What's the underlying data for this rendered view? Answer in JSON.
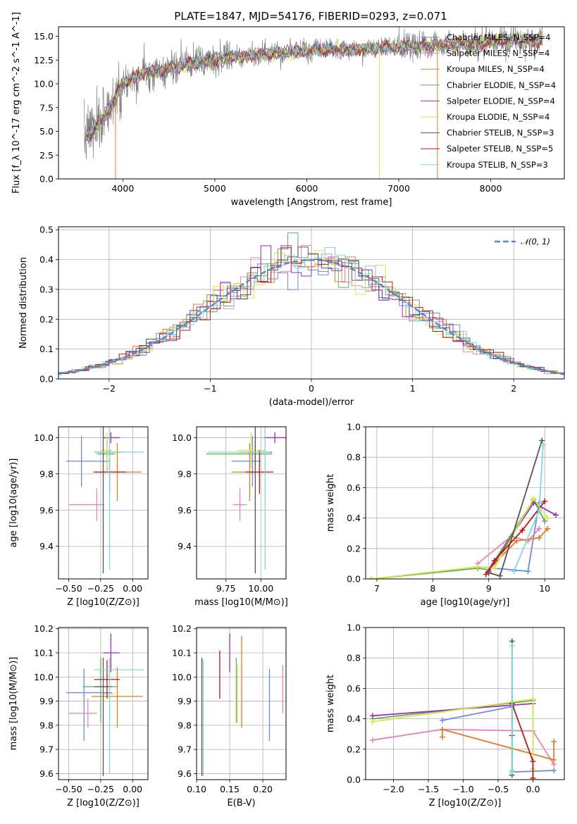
{
  "title": "PLATE=1847, MJD=54176, FIBERID=0293, z=0.071",
  "colors": {
    "Chabrier MILES": "#6a8be0",
    "Salpeter MILES": "#e683b8",
    "Kroupa MILES": "#e07b25",
    "Chabrier ELODIE": "#6aa85a",
    "Salpeter ELODIE": "#9b2fb5",
    "Kroupa ELODIE": "#d7e84a",
    "Chabrier STELIB": "#555555",
    "Salpeter STELIB": "#b01c1c",
    "Kroupa STELIB": "#7fd6e0",
    "data": "#7f7f7f",
    "gauss": "#5588cc",
    "grid": "#b0b0b0"
  },
  "chart_data": [
    {
      "id": "spectrum",
      "type": "line",
      "xlabel": "wavelength [Angstrom, rest frame]",
      "ylabel": "Flux [f_λ 10^-17 erg cm^-2 s^-1 A^-1]",
      "xlim": [
        3300,
        8800
      ],
      "ylim": [
        0,
        16
      ],
      "xticks": [
        "4000",
        "5000",
        "6000",
        "7000",
        "8000"
      ],
      "yticks": [
        "0.0",
        "2.5",
        "5.0",
        "7.5",
        "10.0",
        "12.5",
        "15.0"
      ],
      "grid": false,
      "legend": "top-right",
      "series": [
        {
          "name": "Chabrier MILES, N_SSP=4"
        },
        {
          "name": "Salpeter MILES, N_SSP=4"
        },
        {
          "name": "Kroupa MILES, N_SSP=4"
        },
        {
          "name": "Chabrier ELODIE, N_SSP=4"
        },
        {
          "name": "Salpeter ELODIE, N_SSP=4"
        },
        {
          "name": "Kroupa ELODIE, N_SSP=4"
        },
        {
          "name": "Chabrier STELIB, N_SSP=3"
        },
        {
          "name": "Salpeter STELIB, N_SSP=5"
        },
        {
          "name": "Kroupa STELIB, N_SSP=3"
        }
      ],
      "model_continuum": {
        "x": [
          3600,
          3750,
          3900,
          4000,
          4100,
          4250,
          4400,
          4600,
          4800,
          5000,
          5300,
          5600,
          6000,
          6500,
          7000,
          7500,
          8000,
          8500
        ],
        "y": [
          4.5,
          5.8,
          8.3,
          10.0,
          10.6,
          11.3,
          11.3,
          11.8,
          12.3,
          12.6,
          12.9,
          13.2,
          13.5,
          13.6,
          13.9,
          14.1,
          14.4,
          14.6
        ]
      }
    },
    {
      "id": "residuals",
      "type": "line",
      "xlabel": "(data-model)/error",
      "ylabel": "Normed distribution",
      "xlim": [
        -2.5,
        2.5
      ],
      "ylim": [
        0,
        0.51
      ],
      "xticks": [
        "−2",
        "−1",
        "0",
        "1",
        "2"
      ],
      "yticks": [
        "0.0",
        "0.1",
        "0.2",
        "0.3",
        "0.4",
        "0.5"
      ],
      "grid": true,
      "legend": "top-right",
      "gaussian_label": "𝒩(0, 1)",
      "gaussian": {
        "mean": 0,
        "sigma": 1
      }
    },
    {
      "id": "age-vs-Z",
      "type": "scatter",
      "xlabel": "Z [log10(Z/Z⊙)]",
      "ylabel": "age [log10(age/yr)]",
      "xlim": [
        -0.58,
        0.12
      ],
      "ylim": [
        9.22,
        10.06
      ],
      "xticks": [
        "−0.50",
        "−0.25",
        "0.00"
      ],
      "yticks": [
        "9.4",
        "9.6",
        "9.8",
        "10.0"
      ],
      "grid": true,
      "points": [
        {
          "model": "Chabrier MILES",
          "x": -0.4,
          "xerr": [
            0.12,
            0.22
          ],
          "y": 9.87,
          "yerr": [
            0.14,
            0.14
          ]
        },
        {
          "model": "Salpeter MILES",
          "x": -0.28,
          "xerr": [
            0.22,
            0.06
          ],
          "y": 9.63,
          "yerr": [
            0.09,
            0.09
          ]
        },
        {
          "model": "Kroupa MILES",
          "x": -0.12,
          "xerr": [
            0.19,
            0.19
          ],
          "y": 9.81,
          "yerr": [
            0.16,
            0.16
          ]
        },
        {
          "model": "Chabrier ELODIE",
          "x": -0.2,
          "xerr": [
            0.08,
            0.06
          ],
          "y": 9.91,
          "yerr": [
            0.09,
            0.09
          ]
        },
        {
          "model": "Salpeter ELODIE",
          "x": -0.17,
          "xerr": [
            0.06,
            0.07
          ],
          "y": 10.0,
          "yerr": [
            0.03,
            0.03
          ]
        },
        {
          "model": "Kroupa ELODIE",
          "x": -0.2,
          "xerr": [
            0.05,
            0.04
          ],
          "y": 9.93,
          "yerr": [
            0.1,
            0.1
          ]
        },
        {
          "model": "Chabrier STELIB",
          "x": -0.23,
          "xerr": [
            0.07,
            0.14
          ],
          "y": 9.92,
          "yerr": [
            0.67,
            0.67
          ]
        },
        {
          "model": "Salpeter STELIB",
          "x": -0.18,
          "xerr": [
            0.12,
            0.13
          ],
          "y": 9.81,
          "yerr": [
            0.12,
            0.12
          ]
        },
        {
          "model": "Kroupa STELIB",
          "x": -0.18,
          "xerr": [
            0.12,
            0.27
          ],
          "y": 9.92,
          "yerr": [
            0.65,
            0.65
          ]
        }
      ]
    },
    {
      "id": "age-vs-mass",
      "type": "scatter",
      "xlabel": "mass [log10(M/M⊙)]",
      "ylabel": "",
      "xlim": [
        9.54,
        10.18
      ],
      "ylim": [
        9.22,
        10.06
      ],
      "xticks": [
        "9.75",
        "10.00"
      ],
      "yticks": [
        "9.4",
        "9.6",
        "9.8",
        "10.0"
      ],
      "grid": true,
      "points": [
        {
          "model": "Chabrier MILES",
          "x": 9.94,
          "xerr": [
            0.15,
            0.06
          ],
          "y": 9.87,
          "yerr": [
            0.14,
            0.14
          ]
        },
        {
          "model": "Salpeter MILES",
          "x": 9.85,
          "xerr": [
            0.05,
            0.05
          ],
          "y": 9.63,
          "yerr": [
            0.09,
            0.09
          ]
        },
        {
          "model": "Kroupa MILES",
          "x": 9.92,
          "xerr": [
            0.13,
            0.12
          ],
          "y": 9.81,
          "yerr": [
            0.16,
            0.16
          ]
        },
        {
          "model": "Chabrier ELODIE",
          "x": 9.96,
          "xerr": [
            0.35,
            0.12
          ],
          "y": 9.91,
          "yerr": [
            0.09,
            0.09
          ]
        },
        {
          "model": "Salpeter ELODIE",
          "x": 10.1,
          "xerr": [
            0.08,
            0.08
          ],
          "y": 10.0,
          "yerr": [
            0.03,
            0.03
          ]
        },
        {
          "model": "Kroupa ELODIE",
          "x": 9.93,
          "xerr": [
            0.1,
            0.1
          ],
          "y": 9.93,
          "yerr": [
            0.1,
            0.1
          ]
        },
        {
          "model": "Chabrier STELIB",
          "x": 9.96,
          "xerr": [
            0.12,
            0.12
          ],
          "y": 9.92,
          "yerr": [
            0.67,
            0.67
          ]
        },
        {
          "model": "Salpeter STELIB",
          "x": 9.99,
          "xerr": [
            0.1,
            0.1
          ],
          "y": 9.81,
          "yerr": [
            0.12,
            0.12
          ]
        },
        {
          "model": "Kroupa STELIB",
          "x": 10.03,
          "xerr": [
            0.41,
            0.04
          ],
          "y": 9.92,
          "yerr": [
            0.65,
            0.65
          ]
        }
      ]
    },
    {
      "id": "weight-vs-age",
      "type": "line",
      "xlabel": "age [log10(age/yr)]",
      "ylabel": "mass weight",
      "xlim": [
        6.8,
        10.35
      ],
      "ylim": [
        0,
        1
      ],
      "xticks": [
        "7",
        "8",
        "9",
        "10"
      ],
      "yticks": [
        "0.0",
        "0.2",
        "0.4",
        "0.6",
        "0.8",
        "1.0"
      ],
      "grid": true,
      "series": [
        {
          "model": "Chabrier MILES",
          "x": [
            8.8,
            9.7,
            9.9
          ],
          "y": [
            0.08,
            0.05,
            0.5
          ]
        },
        {
          "model": "Salpeter MILES",
          "x": [
            8.8,
            9.4,
            9.7,
            9.9
          ],
          "y": [
            0.1,
            0.28,
            0.25,
            0.33
          ]
        },
        {
          "model": "Kroupa MILES",
          "x": [
            9.1,
            9.5,
            9.9,
            10.05
          ],
          "y": [
            0.1,
            0.25,
            0.27,
            0.33
          ]
        },
        {
          "model": "Chabrier ELODIE",
          "x": [
            6.9,
            8.8,
            9.0,
            9.8,
            10.0
          ],
          "y": [
            0.0,
            0.07,
            0.06,
            0.52,
            0.38
          ]
        },
        {
          "model": "Salpeter ELODIE",
          "x": [
            9.0,
            9.8,
            10.2
          ],
          "y": [
            0.05,
            0.5,
            0.42
          ]
        },
        {
          "model": "Kroupa ELODIE",
          "x": [
            6.9,
            8.8,
            9.1,
            9.8,
            10.05
          ],
          "y": [
            0.0,
            0.08,
            0.07,
            0.53,
            0.4
          ]
        },
        {
          "model": "Chabrier STELIB",
          "x": [
            9.0,
            9.2,
            9.95
          ],
          "y": [
            0.04,
            0.02,
            0.91
          ]
        },
        {
          "model": "Salpeter STELIB",
          "x": [
            8.95,
            9.1,
            9.6,
            10.0
          ],
          "y": [
            0.03,
            0.12,
            0.32,
            0.51
          ]
        },
        {
          "model": "Kroupa STELIB",
          "x": [
            9.45,
            9.9,
            9.97
          ],
          "y": [
            0.05,
            0.45,
            0.88
          ]
        }
      ]
    },
    {
      "id": "mass-vs-Z",
      "type": "scatter",
      "xlabel": "Z [log10(Z/Z⊙)]",
      "ylabel": "mass [log10(M/M⊙)]",
      "xlim": [
        -0.58,
        0.12
      ],
      "ylim": [
        9.575,
        10.205
      ],
      "xticks": [
        "−0.50",
        "−0.25",
        "0.00"
      ],
      "yticks": [
        "9.6",
        "9.7",
        "9.8",
        "9.9",
        "10.0",
        "10.1",
        "10.2"
      ],
      "grid": true,
      "points": [
        {
          "model": "Chabrier MILES",
          "x": -0.38,
          "xerr": [
            0.14,
            0.22
          ],
          "y": 9.935,
          "yerr": [
            0.2,
            0.1
          ]
        },
        {
          "model": "Salpeter MILES",
          "x": -0.35,
          "xerr": [
            0.15,
            0.07
          ],
          "y": 9.85,
          "yerr": [
            0.06,
            0.06
          ]
        },
        {
          "model": "Kroupa MILES",
          "x": -0.12,
          "xerr": [
            0.2,
            0.2
          ],
          "y": 9.92,
          "yerr": [
            0.13,
            0.12
          ]
        },
        {
          "model": "Chabrier ELODIE",
          "x": -0.25,
          "xerr": [
            0.14,
            0.13
          ],
          "y": 9.96,
          "yerr": [
            0.15,
            0.12
          ]
        },
        {
          "model": "Salpeter ELODIE",
          "x": -0.17,
          "xerr": [
            0.06,
            0.07
          ],
          "y": 10.1,
          "yerr": [
            0.08,
            0.08
          ]
        },
        {
          "model": "Kroupa ELODIE",
          "x": -0.18,
          "xerr": [
            0.05,
            0.04
          ],
          "y": 9.93,
          "yerr": [
            0.12,
            0.12
          ]
        },
        {
          "model": "Chabrier STELIB",
          "x": -0.23,
          "xerr": [
            0.07,
            0.07
          ],
          "y": 9.96,
          "yerr": [
            0.37,
            0.12
          ]
        },
        {
          "model": "Salpeter STELIB",
          "x": -0.2,
          "xerr": [
            0.1,
            0.1
          ],
          "y": 9.99,
          "yerr": [
            0.08,
            0.08
          ]
        },
        {
          "model": "Kroupa STELIB",
          "x": -0.18,
          "xerr": [
            0.12,
            0.27
          ],
          "y": 10.03,
          "yerr": [
            0.43,
            0.05
          ]
        }
      ]
    },
    {
      "id": "mass-vs-EBV",
      "type": "scatter",
      "xlabel": "E(B-V)",
      "ylabel": "",
      "xlim": [
        0.1,
        0.235
      ],
      "ylim": [
        9.575,
        10.205
      ],
      "xticks": [
        "0.10",
        "0.15",
        "0.20"
      ],
      "yticks": [
        "9.6",
        "9.7",
        "9.8",
        "9.9",
        "10.0",
        "10.1",
        "10.2"
      ],
      "grid": true,
      "points": [
        {
          "model": "Chabrier MILES",
          "x": 0.21,
          "y": 9.935,
          "yerr": [
            0.2,
            0.1
          ]
        },
        {
          "model": "Salpeter MILES",
          "x": 0.23,
          "y": 9.95,
          "yerr": [
            0.1,
            0.1
          ]
        },
        {
          "model": "Kroupa MILES",
          "x": 0.168,
          "y": 9.98,
          "yerr": [
            0.19,
            0.19
          ]
        },
        {
          "model": "Chabrier ELODIE",
          "x": 0.16,
          "y": 9.95,
          "yerr": [
            0.14,
            0.13
          ]
        },
        {
          "model": "Salpeter ELODIE",
          "x": 0.15,
          "y": 10.1,
          "yerr": [
            0.08,
            0.08
          ]
        },
        {
          "model": "Kroupa ELODIE",
          "x": 0.162,
          "y": 9.93,
          "yerr": [
            0.12,
            0.12
          ]
        },
        {
          "model": "Chabrier STELIB",
          "x": 0.108,
          "y": 9.84,
          "yerr": [
            0.25,
            0.24
          ]
        },
        {
          "model": "Salpeter STELIB",
          "x": 0.135,
          "y": 10.01,
          "yerr": [
            0.1,
            0.1
          ]
        },
        {
          "model": "Kroupa STELIB",
          "x": 0.11,
          "y": 9.83,
          "yerr": [
            0.24,
            0.24
          ]
        }
      ]
    },
    {
      "id": "weight-vs-Z",
      "type": "line",
      "xlabel": "Z [log10(Z/Z⊙)]",
      "ylabel": "mass weight",
      "xlim": [
        -2.4,
        0.45
      ],
      "ylim": [
        0,
        1
      ],
      "xticks": [
        "−2.0",
        "−1.5",
        "−1.0",
        "−0.5",
        "0.0"
      ],
      "yticks": [
        "0.0",
        "0.2",
        "0.4",
        "0.6",
        "0.8",
        "1.0"
      ],
      "grid": true,
      "series": [
        {
          "model": "Chabrier MILES",
          "x": [
            -1.3,
            -0.3,
            -0.3,
            0.3
          ],
          "y": [
            0.39,
            0.48,
            0.05,
            0.06
          ]
        },
        {
          "model": "Salpeter MILES",
          "x": [
            -2.3,
            -1.3,
            0.0,
            0.3
          ],
          "y": [
            0.26,
            0.33,
            0.32,
            0.1
          ]
        },
        {
          "model": "Kroupa MILES",
          "x": [
            -1.3,
            -1.3,
            0.3,
            0.3
          ],
          "y": [
            0.28,
            0.33,
            0.13,
            0.25
          ]
        },
        {
          "model": "Chabrier ELODIE",
          "x": [
            -2.3,
            0.0,
            0.0
          ],
          "y": [
            0.4,
            0.52,
            0.07
          ]
        },
        {
          "model": "Salpeter ELODIE",
          "x": [
            -2.3,
            0.0
          ],
          "y": [
            0.42,
            0.5
          ]
        },
        {
          "model": "Kroupa ELODIE",
          "x": [
            -2.3,
            0.0,
            0.0
          ],
          "y": [
            0.38,
            0.53,
            0.07
          ]
        },
        {
          "model": "Chabrier STELIB",
          "x": [
            -0.3,
            -0.3,
            -0.3
          ],
          "y": [
            0.91,
            0.29,
            0.03
          ]
        },
        {
          "model": "Salpeter STELIB",
          "x": [
            -0.3,
            0.0,
            0.0
          ],
          "y": [
            0.5,
            0.12,
            0.01
          ]
        },
        {
          "model": "Kroupa STELIB",
          "x": [
            -0.3,
            -0.3,
            -0.3
          ],
          "y": [
            0.88,
            0.05,
            0.06
          ]
        }
      ]
    }
  ]
}
